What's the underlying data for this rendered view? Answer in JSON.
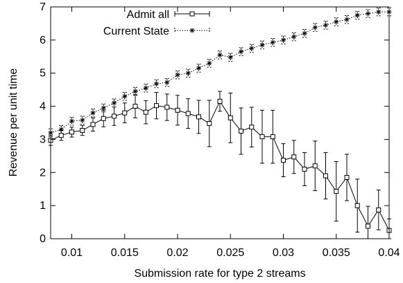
{
  "chart_data": {
    "type": "line",
    "title": "",
    "xlabel": "Submission rate for type 2 streams",
    "ylabel": "Revenue per unit time",
    "xlim": [
      0.008,
      0.04
    ],
    "ylim": [
      0,
      7
    ],
    "xticks": [
      0.01,
      0.015,
      0.02,
      0.025,
      0.03,
      0.035,
      0.04
    ],
    "xtick_labels": [
      "0.01",
      "0.015",
      "0.02",
      "0.025",
      "0.03",
      "0.035",
      "0.04"
    ],
    "yticks": [
      0,
      1,
      2,
      3,
      4,
      5,
      6,
      7
    ],
    "ytick_labels": [
      "0",
      "1",
      "2",
      "3",
      "4",
      "5",
      "6",
      "7"
    ],
    "grid": false,
    "legend_position": "top-left",
    "series": [
      {
        "name": "Admit all",
        "style": "solid",
        "marker": "square",
        "color": "#000000",
        "x": [
          0.008,
          0.009,
          0.01,
          0.011,
          0.012,
          0.013,
          0.014,
          0.015,
          0.016,
          0.017,
          0.018,
          0.019,
          0.02,
          0.021,
          0.022,
          0.023,
          0.024,
          0.025,
          0.026,
          0.027,
          0.028,
          0.029,
          0.03,
          0.031,
          0.032,
          0.033,
          0.034,
          0.035,
          0.036,
          0.037,
          0.038,
          0.039,
          0.04
        ],
        "y": [
          2.97,
          3.12,
          3.22,
          3.27,
          3.45,
          3.63,
          3.7,
          3.8,
          4.0,
          3.82,
          4.02,
          3.97,
          3.88,
          3.78,
          3.68,
          3.48,
          4.15,
          3.65,
          3.25,
          3.37,
          3.08,
          3.08,
          2.37,
          2.47,
          2.1,
          2.2,
          1.9,
          1.43,
          1.85,
          1.0,
          0.38,
          0.87,
          0.25
        ],
        "err": [
          0.15,
          0.15,
          0.15,
          0.15,
          0.2,
          0.25,
          0.28,
          0.3,
          0.35,
          0.35,
          0.4,
          0.4,
          0.45,
          0.45,
          0.5,
          0.7,
          0.3,
          0.75,
          0.7,
          0.6,
          0.8,
          0.8,
          0.5,
          0.5,
          0.5,
          0.75,
          0.7,
          0.9,
          0.7,
          0.8,
          0.6,
          0.6,
          0.35
        ]
      },
      {
        "name": "Current State",
        "style": "dotted",
        "marker": "star",
        "color": "#000000",
        "x": [
          0.008,
          0.009,
          0.01,
          0.011,
          0.012,
          0.013,
          0.014,
          0.015,
          0.016,
          0.017,
          0.018,
          0.019,
          0.02,
          0.021,
          0.022,
          0.023,
          0.024,
          0.025,
          0.026,
          0.027,
          0.028,
          0.029,
          0.03,
          0.031,
          0.032,
          0.033,
          0.034,
          0.035,
          0.036,
          0.037,
          0.038,
          0.039,
          0.04
        ],
        "y": [
          3.2,
          3.3,
          3.55,
          3.58,
          3.8,
          3.95,
          4.1,
          4.3,
          4.45,
          4.55,
          4.68,
          4.72,
          4.95,
          5.0,
          5.15,
          5.3,
          5.55,
          5.48,
          5.65,
          5.75,
          5.85,
          5.93,
          6.0,
          6.1,
          6.2,
          6.38,
          6.45,
          6.55,
          6.62,
          6.75,
          6.8,
          6.85,
          6.85
        ]
      }
    ]
  }
}
